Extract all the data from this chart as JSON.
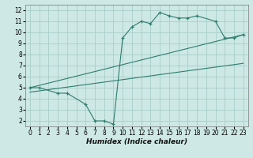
{
  "xlabel": "Humidex (Indice chaleur)",
  "xlim": [
    -0.5,
    23.5
  ],
  "ylim": [
    1.5,
    12.5
  ],
  "xticks": [
    0,
    1,
    2,
    3,
    4,
    5,
    6,
    7,
    8,
    9,
    10,
    11,
    12,
    13,
    14,
    15,
    16,
    17,
    18,
    19,
    20,
    21,
    22,
    23
  ],
  "yticks": [
    2,
    3,
    4,
    5,
    6,
    7,
    8,
    9,
    10,
    11,
    12
  ],
  "bg_color": "#cde8e5",
  "grid_color": "#a8ceca",
  "line_color": "#2e7d6e",
  "series": [
    {
      "x": [
        0,
        1,
        3,
        4,
        6,
        7,
        8,
        9,
        10,
        11,
        12,
        13,
        14,
        15,
        16,
        17,
        18,
        20,
        21,
        22,
        23
      ],
      "y": [
        5,
        5,
        4.5,
        4.5,
        3.5,
        2,
        2,
        1.7,
        9.5,
        10.5,
        11.0,
        10.8,
        11.8,
        11.5,
        11.3,
        11.3,
        11.5,
        11.0,
        9.5,
        9.5,
        9.8
      ],
      "marker": true
    },
    {
      "x": [
        0,
        23
      ],
      "y": [
        5.0,
        9.8
      ],
      "marker": false
    },
    {
      "x": [
        0,
        23
      ],
      "y": [
        4.6,
        7.2
      ],
      "marker": false
    }
  ],
  "tick_fontsize": 5.5,
  "xlabel_fontsize": 6.5
}
